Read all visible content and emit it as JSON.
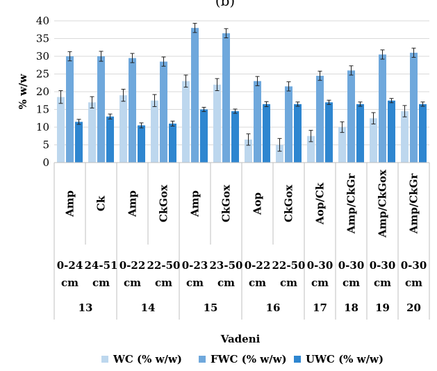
{
  "chart_data": {
    "type": "bar",
    "panel_label": "(b)",
    "ylabel": "% w/w",
    "xlabel": "Vadeni",
    "ylim": [
      0,
      40
    ],
    "yticks": [
      0,
      5,
      10,
      15,
      20,
      25,
      30,
      35,
      40
    ],
    "grid": true,
    "legend_position": "bottom",
    "categories": [
      {
        "sample": "Amp",
        "depth": [
          "0-24",
          "cm"
        ],
        "site": "13"
      },
      {
        "sample": "Ck",
        "depth": [
          "24-51",
          "cm"
        ],
        "site": "13"
      },
      {
        "sample": "Amp",
        "depth": [
          "0-22",
          "cm"
        ],
        "site": "14"
      },
      {
        "sample": "CkGox",
        "depth": [
          "22-50",
          "cm"
        ],
        "site": "14"
      },
      {
        "sample": "Amp",
        "depth": [
          "0-23",
          "cm"
        ],
        "site": "15"
      },
      {
        "sample": "CkGox",
        "depth": [
          "23-50",
          "cm"
        ],
        "site": "15"
      },
      {
        "sample": "Aop",
        "depth": [
          "0-22",
          "cm"
        ],
        "site": "16"
      },
      {
        "sample": "CkGox",
        "depth": [
          "22-50",
          "cm"
        ],
        "site": "16"
      },
      {
        "sample": "Aop/Ck",
        "depth": [
          "0-30",
          "cm"
        ],
        "site": "17"
      },
      {
        "sample": "Amp/CkGr",
        "depth": [
          "0-30",
          "cm"
        ],
        "site": "18"
      },
      {
        "sample": "Amp/CkGox",
        "depth": [
          "0-30",
          "cm"
        ],
        "site": "19"
      },
      {
        "sample": "Amp/CkGr",
        "depth": [
          "0-30",
          "cm"
        ],
        "site": "20"
      }
    ],
    "sites": [
      {
        "label": "13",
        "span": 2
      },
      {
        "label": "14",
        "span": 2
      },
      {
        "label": "15",
        "span": 2
      },
      {
        "label": "16",
        "span": 2
      },
      {
        "label": "17",
        "span": 1
      },
      {
        "label": "18",
        "span": 1
      },
      {
        "label": "19",
        "span": 1
      },
      {
        "label": "20",
        "span": 1
      }
    ],
    "series": [
      {
        "name": "WC (% w/w)",
        "color": "#bdd7ee",
        "values": [
          18.5,
          17.0,
          19.0,
          17.5,
          23.0,
          22.0,
          6.5,
          5.0,
          7.5,
          10.0,
          12.5,
          14.5
        ],
        "errors": [
          1.8,
          1.6,
          1.7,
          1.7,
          1.7,
          1.7,
          1.6,
          1.8,
          1.6,
          1.5,
          1.6,
          1.6
        ]
      },
      {
        "name": "FWC (% w/w)",
        "color": "#6fa8dc",
        "values": [
          30.0,
          30.0,
          29.5,
          28.5,
          38.0,
          36.5,
          23.0,
          21.5,
          24.5,
          26.0,
          30.5,
          31.0
        ],
        "errors": [
          1.3,
          1.4,
          1.3,
          1.3,
          1.3,
          1.3,
          1.3,
          1.3,
          1.3,
          1.3,
          1.3,
          1.3
        ]
      },
      {
        "name": "UWC (% w/w)",
        "color": "#2e86d0",
        "values": [
          11.5,
          13.0,
          10.5,
          11.0,
          15.0,
          14.5,
          16.5,
          16.5,
          17.0,
          16.5,
          17.5,
          16.5
        ],
        "errors": [
          0.7,
          0.7,
          0.7,
          0.7,
          0.6,
          0.6,
          0.7,
          0.6,
          0.6,
          0.6,
          0.6,
          0.6
        ]
      }
    ]
  }
}
